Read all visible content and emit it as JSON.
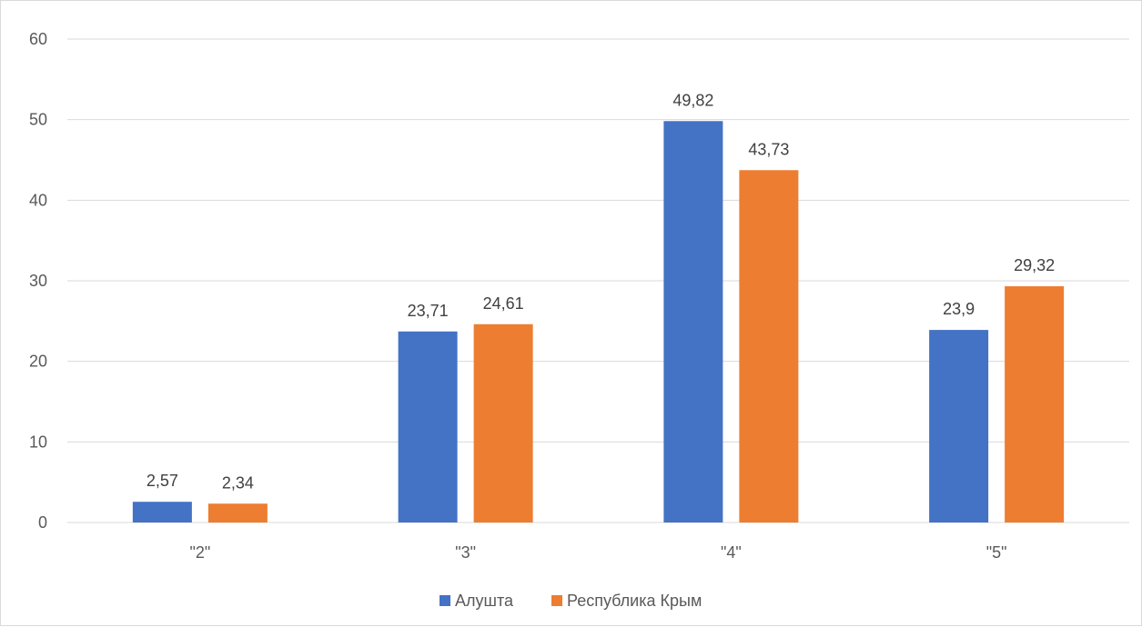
{
  "chart_data": {
    "type": "bar",
    "title": "",
    "xlabel": "",
    "ylabel": "",
    "categories": [
      "\"2\"",
      "\"3\"",
      "\"4\"",
      "\"5\""
    ],
    "series": [
      {
        "name": "Алушта",
        "color": "#4472c4",
        "values": [
          2.57,
          23.71,
          49.82,
          23.9
        ],
        "labels": [
          "2,57",
          "23,71",
          "49,82",
          "23,9"
        ]
      },
      {
        "name": "Республика Крым",
        "color": "#ed7d31",
        "values": [
          2.34,
          24.61,
          43.73,
          29.32
        ],
        "labels": [
          "2,34",
          "24,61",
          "43,73",
          "29,32"
        ]
      }
    ],
    "ylim": [
      0,
      60
    ],
    "yticks": [
      0,
      10,
      20,
      30,
      40,
      50,
      60
    ],
    "grid": true,
    "legend": "bottom-center",
    "gridline_color": "#d9d9d9"
  }
}
